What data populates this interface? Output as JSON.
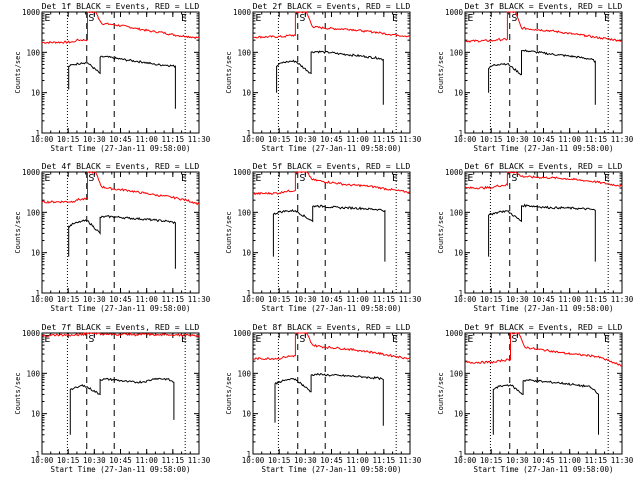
{
  "chart_data": [
    {
      "type": "line",
      "title": "Det 1f BLACK = Events, RED = LLD",
      "ylabel": "Counts/sec",
      "xlabel": "Start Time (27-Jan-11 09:58:00)",
      "xticks": [
        "10:00",
        "10:15",
        "10:30",
        "10:45",
        "11:00",
        "11:15",
        "11:30"
      ],
      "yticks": [
        "1",
        "10",
        "100",
        "1000"
      ],
      "xlim": [
        0,
        100
      ],
      "ylim": [
        1,
        1000
      ],
      "markers": [
        "E",
        "S",
        "E"
      ],
      "series": [
        {
          "name": "LLD",
          "color": "#ff0000",
          "x": [
            0,
            20,
            22,
            29,
            29,
            34,
            38,
            45,
            55,
            60,
            65,
            70,
            72,
            77,
            82,
            87,
            92,
            97,
            100
          ],
          "y": [
            175,
            180,
            200,
            205,
            1000,
            1000,
            520,
            490,
            430,
            390,
            360,
            330,
            325,
            310,
            280,
            260,
            250,
            235,
            230
          ]
        },
        {
          "name": "Events",
          "color": "#000000",
          "x": [
            17,
            17,
            20,
            23,
            25,
            29,
            37,
            37,
            40,
            45,
            50,
            55,
            60,
            65,
            70,
            72,
            80,
            85,
            85
          ],
          "y": [
            12,
            45,
            50,
            52,
            55,
            55,
            30,
            75,
            78,
            73,
            68,
            64,
            60,
            57,
            52,
            50,
            48,
            45,
            4
          ]
        }
      ]
    },
    {
      "type": "line",
      "title": "Det 2f BLACK = Events, RED = LLD",
      "ylabel": "Counts/sec",
      "xlabel": "Start Time (27-Jan-11 09:58:00)",
      "xticks": [
        "10:00",
        "10:15",
        "10:30",
        "10:45",
        "11:00",
        "11:15",
        "11:30"
      ],
      "yticks": [
        "1",
        "10",
        "100",
        "1000"
      ],
      "xlim": [
        0,
        100
      ],
      "ylim": [
        1,
        1000
      ],
      "markers": [
        "E",
        "S",
        "E"
      ],
      "series": [
        {
          "name": "LLD",
          "color": "#ff0000",
          "x": [
            0,
            20,
            22,
            27,
            27,
            34,
            38,
            45,
            55,
            60,
            65,
            70,
            72,
            77,
            82,
            87,
            92,
            97,
            100
          ],
          "y": [
            240,
            245,
            260,
            265,
            1000,
            1000,
            430,
            400,
            380,
            380,
            360,
            340,
            330,
            320,
            300,
            280,
            270,
            255,
            250
          ]
        },
        {
          "name": "Events",
          "color": "#000000",
          "x": [
            15,
            15,
            18,
            22,
            24,
            27,
            37,
            37,
            40,
            45,
            50,
            55,
            60,
            65,
            70,
            72,
            80,
            83,
            83
          ],
          "y": [
            10,
            45,
            55,
            58,
            60,
            60,
            30,
            100,
            105,
            102,
            98,
            92,
            88,
            84,
            80,
            78,
            72,
            66,
            5
          ]
        }
      ]
    },
    {
      "type": "line",
      "title": "Det 3f BLACK = Events, RED = LLD",
      "ylabel": "Counts/sec",
      "xlabel": "Start Time (27-Jan-11 09:58:00)",
      "xticks": [
        "10:00",
        "10:15",
        "10:30",
        "10:45",
        "11:00",
        "11:15",
        "11:30"
      ],
      "yticks": [
        "1",
        "10",
        "100",
        "1000"
      ],
      "xlim": [
        0,
        100
      ],
      "ylim": [
        1,
        1000
      ],
      "markers": [
        "E",
        "S",
        "E"
      ],
      "series": [
        {
          "name": "LLD",
          "color": "#ff0000",
          "x": [
            0,
            18,
            20,
            27,
            27,
            32,
            36,
            45,
            55,
            60,
            65,
            70,
            72,
            77,
            82,
            87,
            92,
            97,
            100
          ],
          "y": [
            190,
            195,
            205,
            210,
            1000,
            1000,
            400,
            370,
            340,
            320,
            300,
            280,
            275,
            260,
            240,
            225,
            215,
            200,
            195
          ]
        },
        {
          "name": "Events",
          "color": "#000000",
          "x": [
            15,
            15,
            18,
            21,
            23,
            27,
            36,
            36,
            40,
            45,
            50,
            55,
            60,
            65,
            70,
            73,
            80,
            83,
            83
          ],
          "y": [
            10,
            40,
            48,
            50,
            52,
            52,
            28,
            110,
            108,
            102,
            96,
            90,
            86,
            82,
            78,
            75,
            68,
            60,
            5
          ]
        }
      ]
    },
    {
      "type": "line",
      "title": "Det 4f BLACK = Events, RED = LLD",
      "ylabel": "Counts/sec",
      "xlabel": "Start Time (27-Jan-11 09:58:00)",
      "xticks": [
        "10:00",
        "10:15",
        "10:30",
        "10:45",
        "11:00",
        "11:15",
        "11:30"
      ],
      "yticks": [
        "1",
        "10",
        "100",
        "1000"
      ],
      "xlim": [
        0,
        100
      ],
      "ylim": [
        1,
        1000
      ],
      "markers": [
        "E",
        "S",
        "E"
      ],
      "series": [
        {
          "name": "LLD",
          "color": "#ff0000",
          "x": [
            0,
            20,
            22,
            29,
            29,
            34,
            38,
            45,
            55,
            60,
            65,
            70,
            72,
            77,
            82,
            87,
            92,
            97,
            100
          ],
          "y": [
            180,
            185,
            205,
            215,
            1000,
            1000,
            430,
            380,
            350,
            320,
            300,
            280,
            270,
            255,
            240,
            220,
            200,
            175,
            160
          ]
        },
        {
          "name": "Events",
          "color": "#000000",
          "x": [
            17,
            17,
            20,
            23,
            25,
            29,
            37,
            37,
            40,
            45,
            50,
            55,
            60,
            65,
            70,
            72,
            80,
            85,
            85
          ],
          "y": [
            8,
            45,
            52,
            56,
            60,
            62,
            30,
            75,
            78,
            78,
            75,
            72,
            70,
            68,
            65,
            64,
            60,
            55,
            4
          ]
        }
      ]
    },
    {
      "type": "line",
      "title": "Det 5f BLACK = Events, RED = LLD",
      "ylabel": "Counts/sec",
      "xlabel": "Start Time (27-Jan-11 09:58:00)",
      "xticks": [
        "10:00",
        "10:15",
        "10:30",
        "10:45",
        "11:00",
        "11:15",
        "11:30"
      ],
      "yticks": [
        "1",
        "10",
        "100",
        "1000"
      ],
      "xlim": [
        0,
        100
      ],
      "ylim": [
        1,
        1000
      ],
      "markers": [
        "E",
        "S",
        "E"
      ],
      "series": [
        {
          "name": "LLD",
          "color": "#ff0000",
          "x": [
            0,
            17,
            20,
            27,
            27,
            34,
            38,
            45,
            55,
            60,
            65,
            70,
            72,
            77,
            82,
            87,
            92,
            97,
            100
          ],
          "y": [
            290,
            300,
            330,
            350,
            1000,
            1000,
            640,
            580,
            520,
            480,
            470,
            460,
            450,
            430,
            400,
            370,
            345,
            325,
            310
          ]
        },
        {
          "name": "Events",
          "color": "#000000",
          "x": [
            13,
            13,
            16,
            19,
            22,
            27,
            38,
            38,
            40,
            45,
            50,
            55,
            60,
            65,
            70,
            72,
            80,
            84,
            84
          ],
          "y": [
            8,
            90,
            100,
            105,
            108,
            110,
            60,
            140,
            145,
            140,
            135,
            130,
            130,
            128,
            125,
            122,
            118,
            110,
            6
          ]
        }
      ]
    },
    {
      "type": "line",
      "title": "Det 6f BLACK = Events, RED = LLD",
      "ylabel": "Counts/sec",
      "xlabel": "Start Time (27-Jan-11 09:58:00)",
      "xticks": [
        "10:00",
        "10:15",
        "10:30",
        "10:45",
        "11:00",
        "11:15",
        "11:30"
      ],
      "yticks": [
        "1",
        "10",
        "100",
        "1000"
      ],
      "xlim": [
        0,
        100
      ],
      "ylim": [
        1,
        1000
      ],
      "markers": [
        "E",
        "S",
        "E"
      ],
      "series": [
        {
          "name": "LLD",
          "color": "#ff0000",
          "x": [
            0,
            18,
            20,
            27,
            27,
            32,
            36,
            45,
            55,
            60,
            65,
            70,
            72,
            77,
            82,
            87,
            92,
            97,
            100
          ],
          "y": [
            400,
            410,
            450,
            480,
            1000,
            1000,
            780,
            740,
            720,
            700,
            680,
            650,
            630,
            610,
            580,
            540,
            500,
            470,
            460
          ]
        },
        {
          "name": "Events",
          "color": "#000000",
          "x": [
            15,
            15,
            18,
            21,
            23,
            27,
            36,
            36,
            40,
            45,
            50,
            55,
            60,
            65,
            70,
            73,
            80,
            83,
            83
          ],
          "y": [
            8,
            85,
            95,
            100,
            105,
            108,
            60,
            145,
            148,
            140,
            135,
            130,
            130,
            128,
            126,
            124,
            120,
            112,
            6
          ]
        }
      ]
    },
    {
      "type": "line",
      "title": "Det 7f BLACK = Events, RED = LLD",
      "ylabel": "Counts/sec",
      "xlabel": "Start Time (27-Jan-11 09:58:00)",
      "xticks": [
        "10:00",
        "10:15",
        "10:30",
        "10:45",
        "11:00",
        "11:15",
        "11:30"
      ],
      "yticks": [
        "1",
        "10",
        "100",
        "1000"
      ],
      "xlim": [
        0,
        100
      ],
      "ylim": [
        1,
        1000
      ],
      "markers": [
        "E",
        "S",
        "E"
      ],
      "series": [
        {
          "name": "LLD",
          "color": "#ff0000",
          "x": [
            0,
            10,
            20,
            27,
            27,
            34,
            38,
            45,
            55,
            60,
            65,
            70,
            75,
            80,
            85,
            90,
            95,
            100
          ],
          "y": [
            850,
            900,
            880,
            920,
            1000,
            1000,
            950,
            920,
            940,
            900,
            930,
            910,
            890,
            920,
            900,
            880,
            870,
            860
          ]
        },
        {
          "name": "Events",
          "color": "#000000",
          "x": [
            18,
            18,
            20,
            23,
            25,
            27,
            37,
            37,
            40,
            45,
            50,
            55,
            60,
            65,
            70,
            72,
            80,
            84,
            84
          ],
          "y": [
            3,
            40,
            42,
            45,
            50,
            50,
            30,
            70,
            72,
            70,
            66,
            62,
            60,
            62,
            70,
            75,
            72,
            60,
            7
          ]
        }
      ]
    },
    {
      "type": "line",
      "title": "Det 8f BLACK = Events, RED = LLD",
      "ylabel": "Counts/sec",
      "xlabel": "Start Time (27-Jan-11 09:58:00)",
      "xticks": [
        "10:00",
        "10:15",
        "10:30",
        "10:45",
        "11:00",
        "11:15",
        "11:30"
      ],
      "yticks": [
        "1",
        "10",
        "100",
        "1000"
      ],
      "xlim": [
        0,
        100
      ],
      "ylim": [
        1,
        1000
      ],
      "markers": [
        "E",
        "S",
        "E"
      ],
      "series": [
        {
          "name": "LLD",
          "color": "#ff0000",
          "x": [
            0,
            18,
            20,
            27,
            27,
            34,
            38,
            45,
            55,
            60,
            65,
            70,
            72,
            77,
            82,
            87,
            92,
            97,
            100
          ],
          "y": [
            230,
            235,
            255,
            275,
            1000,
            1000,
            500,
            450,
            420,
            400,
            380,
            360,
            350,
            330,
            300,
            280,
            260,
            240,
            230
          ]
        },
        {
          "name": "Events",
          "color": "#000000",
          "x": [
            14,
            14,
            17,
            20,
            22,
            27,
            37,
            37,
            40,
            45,
            50,
            55,
            60,
            65,
            70,
            72,
            80,
            83,
            83
          ],
          "y": [
            6,
            55,
            62,
            66,
            70,
            72,
            35,
            90,
            95,
            92,
            90,
            88,
            86,
            84,
            82,
            80,
            76,
            70,
            5
          ]
        }
      ]
    },
    {
      "type": "line",
      "title": "Det 9f BLACK = Events, RED = LLD",
      "ylabel": "Counts/sec",
      "xlabel": "Start Time (27-Jan-11 09:58:00)",
      "xticks": [
        "10:00",
        "10:15",
        "10:30",
        "10:45",
        "11:00",
        "11:15",
        "11:30"
      ],
      "yticks": [
        "1",
        "10",
        "100",
        "1000"
      ],
      "xlim": [
        0,
        100
      ],
      "ylim": [
        1,
        1000
      ],
      "markers": [
        "E",
        "S",
        "E"
      ],
      "series": [
        {
          "name": "LLD",
          "color": "#ff0000",
          "x": [
            0,
            20,
            22,
            29,
            29,
            34,
            38,
            45,
            55,
            60,
            65,
            70,
            72,
            77,
            82,
            87,
            92,
            97,
            100
          ],
          "y": [
            185,
            190,
            205,
            220,
            1000,
            1000,
            450,
            400,
            360,
            330,
            310,
            300,
            290,
            280,
            270,
            240,
            200,
            170,
            150
          ]
        },
        {
          "name": "Events",
          "color": "#000000",
          "x": [
            18,
            18,
            20,
            23,
            25,
            29,
            37,
            37,
            40,
            45,
            50,
            55,
            60,
            65,
            70,
            72,
            78,
            80,
            82,
            84,
            85,
            85
          ],
          "y": [
            3,
            40,
            45,
            48,
            50,
            52,
            30,
            65,
            68,
            66,
            62,
            60,
            58,
            55,
            52,
            50,
            48,
            44,
            40,
            32,
            30,
            3
          ]
        }
      ]
    }
  ]
}
